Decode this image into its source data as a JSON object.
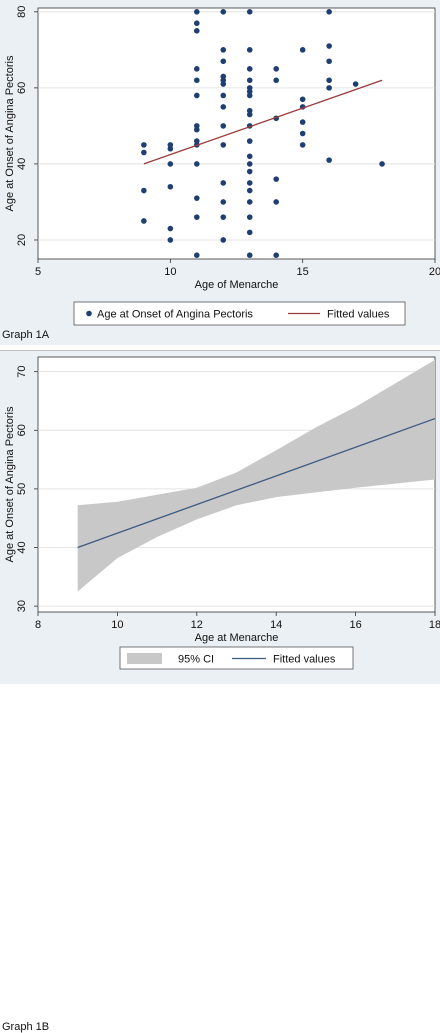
{
  "chart_data": [
    {
      "type": "scatter",
      "caption": "Graph 1A",
      "xlabel": "Age of Menarche",
      "ylabel": "Age at Onset of Angina Pectoris",
      "xlim": [
        5,
        20
      ],
      "ylim": [
        15,
        81
      ],
      "xticks": [
        5,
        10,
        15,
        20
      ],
      "yticks": [
        20,
        40,
        60,
        80
      ],
      "grid": true,
      "legend_position": "bottom",
      "series": [
        {
          "name": "Age at Onset of Angina Pectoris",
          "kind": "points",
          "color": "#1f3f73",
          "points": [
            [
              9,
              45
            ],
            [
              9,
              43
            ],
            [
              9,
              33
            ],
            [
              9,
              25
            ],
            [
              10,
              45
            ],
            [
              10,
              44
            ],
            [
              10,
              40
            ],
            [
              10,
              34
            ],
            [
              10,
              23
            ],
            [
              10,
              20
            ],
            [
              11,
              80
            ],
            [
              11,
              77
            ],
            [
              11,
              75
            ],
            [
              11,
              65
            ],
            [
              11,
              62
            ],
            [
              11,
              58
            ],
            [
              11,
              50
            ],
            [
              11,
              49
            ],
            [
              11,
              46
            ],
            [
              11,
              45
            ],
            [
              11,
              40
            ],
            [
              11,
              31
            ],
            [
              11,
              26
            ],
            [
              11,
              16
            ],
            [
              12,
              80
            ],
            [
              12,
              70
            ],
            [
              12,
              67
            ],
            [
              12,
              63
            ],
            [
              12,
              62
            ],
            [
              12,
              61
            ],
            [
              12,
              58
            ],
            [
              12,
              55
            ],
            [
              12,
              50
            ],
            [
              12,
              45
            ],
            [
              12,
              35
            ],
            [
              12,
              30
            ],
            [
              12,
              26
            ],
            [
              12,
              20
            ],
            [
              13,
              80
            ],
            [
              13,
              70
            ],
            [
              13,
              65
            ],
            [
              13,
              62
            ],
            [
              13,
              60
            ],
            [
              13,
              59
            ],
            [
              13,
              58
            ],
            [
              13,
              54
            ],
            [
              13,
              53
            ],
            [
              13,
              50
            ],
            [
              13,
              46
            ],
            [
              13,
              42
            ],
            [
              13,
              40
            ],
            [
              13,
              38
            ],
            [
              13,
              35
            ],
            [
              13,
              33
            ],
            [
              13,
              30
            ],
            [
              13,
              26
            ],
            [
              13,
              22
            ],
            [
              13,
              16
            ],
            [
              14,
              65
            ],
            [
              14,
              62
            ],
            [
              14,
              52
            ],
            [
              14,
              36
            ],
            [
              14,
              30
            ],
            [
              14,
              16
            ],
            [
              15,
              70
            ],
            [
              15,
              57
            ],
            [
              15,
              55
            ],
            [
              15,
              51
            ],
            [
              15,
              48
            ],
            [
              15,
              45
            ],
            [
              16,
              80
            ],
            [
              16,
              71
            ],
            [
              16,
              67
            ],
            [
              16,
              62
            ],
            [
              16,
              60
            ],
            [
              16,
              41
            ],
            [
              17,
              61
            ],
            [
              18,
              40
            ]
          ]
        },
        {
          "name": "Fitted values",
          "kind": "line",
          "color": "#9b3b3b",
          "points": [
            [
              9,
              40
            ],
            [
              18,
              62
            ]
          ]
        }
      ]
    },
    {
      "type": "area",
      "caption": "Graph 1B",
      "xlabel": "Age at Menarche",
      "ylabel": "Age at Onset of Angina Pectoris",
      "xlim": [
        8,
        18
      ],
      "ylim": [
        29,
        72.5
      ],
      "xticks": [
        8,
        10,
        12,
        14,
        16,
        18
      ],
      "yticks": [
        30,
        40,
        50,
        60,
        70
      ],
      "grid": true,
      "legend_position": "bottom",
      "series": [
        {
          "name": "95% CI",
          "kind": "band",
          "color": "#c8c8c8",
          "x": [
            9,
            10,
            11,
            12,
            13,
            14,
            15,
            16,
            17,
            18
          ],
          "lower": [
            32.5,
            38.2,
            41.8,
            44.8,
            47.2,
            48.6,
            49.4,
            50.2,
            50.9,
            51.6
          ],
          "upper": [
            47.2,
            47.8,
            49.0,
            50.2,
            52.8,
            56.6,
            60.5,
            64.0,
            68.0,
            72.0
          ]
        },
        {
          "name": "Fitted values",
          "kind": "line",
          "color": "#3d5a80",
          "points": [
            [
              9,
              40
            ],
            [
              18,
              62
            ]
          ]
        }
      ]
    }
  ]
}
